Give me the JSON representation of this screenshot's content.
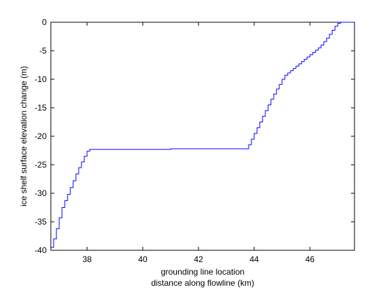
{
  "chart_data": {
    "type": "line",
    "title": "",
    "xlabel_lines": [
      "grounding line location",
      "distance along flowline (km)"
    ],
    "ylabel": "ice shelf surface elevation change (m)",
    "xlim": [
      36.7,
      47.6
    ],
    "ylim": [
      -40,
      0
    ],
    "xticks": [
      38,
      40,
      42,
      44,
      46
    ],
    "yticks": [
      0,
      -5,
      -10,
      -15,
      -20,
      -25,
      -30,
      -35,
      -40
    ],
    "grid": false,
    "line_color": "#0000ff",
    "series": [
      {
        "name": "",
        "x": [
          36.7,
          36.8,
          36.9,
          37.0,
          37.1,
          37.2,
          37.3,
          37.4,
          37.5,
          37.6,
          37.7,
          37.8,
          37.9,
          38.0,
          38.1,
          39.0,
          41.0,
          43.7,
          43.8,
          43.9,
          44.0,
          44.1,
          44.2,
          44.3,
          44.4,
          44.5,
          44.6,
          44.7,
          44.8,
          44.9,
          45.0,
          45.1,
          45.2,
          45.3,
          45.4,
          45.5,
          45.6,
          45.7,
          45.8,
          45.9,
          46.0,
          46.1,
          46.2,
          46.3,
          46.4,
          46.5,
          46.6,
          46.7,
          46.8,
          46.9,
          47.0,
          47.1,
          47.2,
          47.3,
          47.4,
          47.5,
          47.6
        ],
        "y": [
          -39.5,
          -38.0,
          -36.2,
          -34.3,
          -32.5,
          -31.3,
          -30.2,
          -29.0,
          -27.8,
          -26.6,
          -25.5,
          -24.5,
          -23.5,
          -22.6,
          -22.3,
          -22.3,
          -22.2,
          -22.2,
          -21.5,
          -20.5,
          -19.5,
          -18.5,
          -17.5,
          -16.5,
          -15.5,
          -14.5,
          -13.5,
          -12.6,
          -11.7,
          -10.9,
          -10.0,
          -9.3,
          -8.9,
          -8.5,
          -8.1,
          -7.7,
          -7.3,
          -6.9,
          -6.5,
          -6.1,
          -5.7,
          -5.3,
          -4.9,
          -4.5,
          -4.0,
          -3.4,
          -2.8,
          -2.1,
          -1.4,
          -0.7,
          -0.2,
          0.0,
          0.0,
          0.0,
          0.0,
          0.0,
          0.0
        ]
      }
    ]
  }
}
